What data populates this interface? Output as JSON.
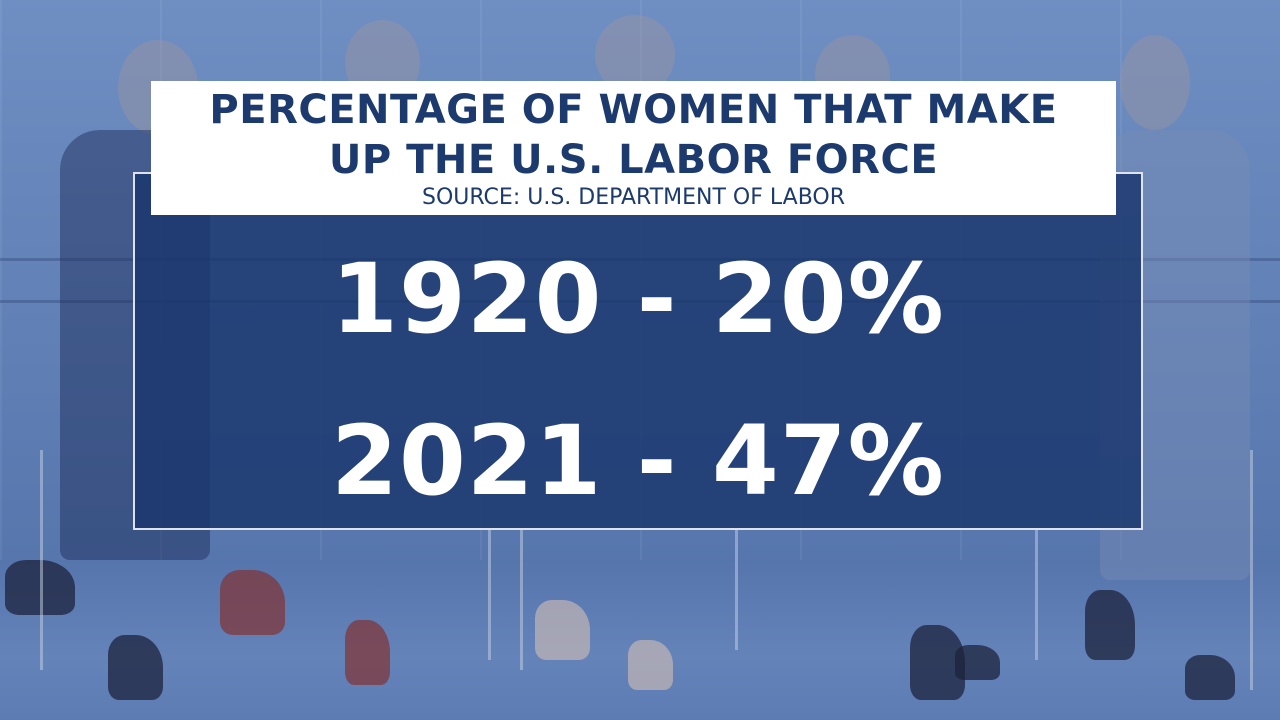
{
  "graphic": {
    "title_line_1": "PERCENTAGE OF WOMEN THAT MAKE",
    "title_line_2": "UP THE U.S. LABOR FORCE",
    "source": "SOURCE: U.S. DEPARTMENT OF LABOR",
    "stats": [
      {
        "text": "1920 - 20%"
      },
      {
        "text": "2021 - 47%"
      }
    ]
  },
  "colors": {
    "title_text": "#1c3a6e",
    "panel_background": "#1a376e",
    "stat_text": "#ffffff"
  }
}
